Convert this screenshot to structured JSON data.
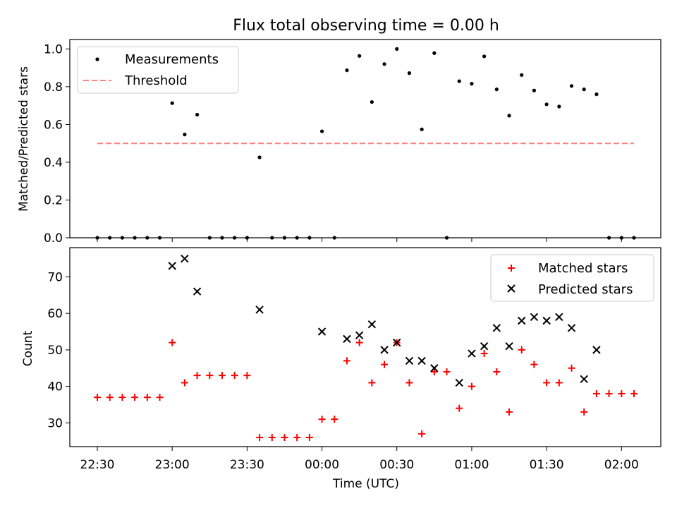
{
  "chart_data": [
    {
      "type": "scatter",
      "title": "Flux total observing time = 0.00 h",
      "xlabel": "",
      "ylabel": "Matched/Predicted stars",
      "ylim": [
        0,
        1.05
      ],
      "yticks": [
        "0.0",
        "0.2",
        "0.4",
        "0.6",
        "0.8",
        "1.0"
      ],
      "x_tick_labels_shown": false,
      "legend": "top-left",
      "series": [
        {
          "name": "Measurements",
          "marker": "dot",
          "color": "#000000",
          "points": [
            [
              "22:30",
              0.0
            ],
            [
              "22:35",
              0.0
            ],
            [
              "22:40",
              0.0
            ],
            [
              "22:45",
              0.0
            ],
            [
              "22:50",
              0.0
            ],
            [
              "22:55",
              0.0
            ],
            [
              "23:00",
              0.713
            ],
            [
              "23:05",
              0.547
            ],
            [
              "23:10",
              0.652
            ],
            [
              "23:15",
              0.0
            ],
            [
              "23:20",
              0.0
            ],
            [
              "23:25",
              0.0
            ],
            [
              "23:30",
              0.0
            ],
            [
              "23:35",
              0.426
            ],
            [
              "23:40",
              0.0
            ],
            [
              "23:45",
              0.0
            ],
            [
              "23:50",
              0.0
            ],
            [
              "23:55",
              0.0
            ],
            [
              "00:00",
              0.564
            ],
            [
              "00:05",
              0.0
            ],
            [
              "00:10",
              0.887
            ],
            [
              "00:15",
              0.963
            ],
            [
              "00:20",
              0.719
            ],
            [
              "00:25",
              0.92
            ],
            [
              "00:30",
              1.0
            ],
            [
              "00:35",
              0.872
            ],
            [
              "00:40",
              0.574
            ],
            [
              "00:45",
              0.978
            ],
            [
              "00:50",
              0.0
            ],
            [
              "00:55",
              0.829
            ],
            [
              "01:00",
              0.816
            ],
            [
              "01:05",
              0.961
            ],
            [
              "01:10",
              0.786
            ],
            [
              "01:15",
              0.647
            ],
            [
              "01:20",
              0.862
            ],
            [
              "01:25",
              0.78
            ],
            [
              "01:30",
              0.707
            ],
            [
              "01:35",
              0.695
            ],
            [
              "01:40",
              0.804
            ],
            [
              "01:45",
              0.786
            ],
            [
              "01:50",
              0.76
            ],
            [
              "01:55",
              0.0
            ],
            [
              "02:00",
              0.0
            ],
            [
              "02:05",
              0.0
            ]
          ]
        },
        {
          "name": "Threshold",
          "marker": "dashed-line",
          "color": "#ff8080",
          "points": [
            [
              "22:30",
              0.5
            ],
            [
              "02:05",
              0.5
            ]
          ]
        }
      ]
    },
    {
      "type": "scatter",
      "title": "",
      "xlabel": "Time (UTC)",
      "ylabel": "Count",
      "ylim": [
        23.5,
        78
      ],
      "yticks": [
        "30",
        "40",
        "50",
        "60",
        "70"
      ],
      "xticks": [
        "22:30",
        "23:00",
        "23:30",
        "00:00",
        "00:30",
        "01:00",
        "01:30",
        "02:00"
      ],
      "legend": "top-right",
      "series": [
        {
          "name": "Matched stars",
          "marker": "plus",
          "color": "#ff0000",
          "points": [
            [
              "22:30",
              37
            ],
            [
              "22:35",
              37
            ],
            [
              "22:40",
              37
            ],
            [
              "22:45",
              37
            ],
            [
              "22:50",
              37
            ],
            [
              "22:55",
              37
            ],
            [
              "23:00",
              52
            ],
            [
              "23:05",
              41
            ],
            [
              "23:10",
              43
            ],
            [
              "23:15",
              43
            ],
            [
              "23:20",
              43
            ],
            [
              "23:25",
              43
            ],
            [
              "23:30",
              43
            ],
            [
              "23:35",
              26
            ],
            [
              "23:40",
              26
            ],
            [
              "23:45",
              26
            ],
            [
              "23:50",
              26
            ],
            [
              "23:55",
              26
            ],
            [
              "00:00",
              31
            ],
            [
              "00:05",
              31
            ],
            [
              "00:10",
              47
            ],
            [
              "00:15",
              52
            ],
            [
              "00:20",
              41
            ],
            [
              "00:25",
              46
            ],
            [
              "00:30",
              52
            ],
            [
              "00:35",
              41
            ],
            [
              "00:40",
              27
            ],
            [
              "00:45",
              44
            ],
            [
              "00:50",
              44
            ],
            [
              "00:55",
              34
            ],
            [
              "01:00",
              40
            ],
            [
              "01:05",
              49
            ],
            [
              "01:10",
              44
            ],
            [
              "01:15",
              33
            ],
            [
              "01:20",
              50
            ],
            [
              "01:25",
              46
            ],
            [
              "01:30",
              41
            ],
            [
              "01:35",
              41
            ],
            [
              "01:40",
              45
            ],
            [
              "01:45",
              33
            ],
            [
              "01:50",
              38
            ],
            [
              "01:55",
              38
            ],
            [
              "02:00",
              38
            ],
            [
              "02:05",
              38
            ]
          ]
        },
        {
          "name": "Predicted stars",
          "marker": "x",
          "color": "#000000",
          "points": [
            [
              "23:00",
              73
            ],
            [
              "23:05",
              75
            ],
            [
              "23:10",
              66
            ],
            [
              "23:35",
              61
            ],
            [
              "00:00",
              55
            ],
            [
              "00:10",
              53
            ],
            [
              "00:15",
              54
            ],
            [
              "00:20",
              57
            ],
            [
              "00:25",
              50
            ],
            [
              "00:30",
              52
            ],
            [
              "00:35",
              47
            ],
            [
              "00:40",
              47
            ],
            [
              "00:45",
              45
            ],
            [
              "00:55",
              41
            ],
            [
              "01:00",
              49
            ],
            [
              "01:05",
              51
            ],
            [
              "01:10",
              56
            ],
            [
              "01:15",
              51
            ],
            [
              "01:20",
              58
            ],
            [
              "01:25",
              59
            ],
            [
              "01:30",
              58
            ],
            [
              "01:35",
              59
            ],
            [
              "01:40",
              56
            ],
            [
              "01:45",
              42
            ],
            [
              "01:50",
              50
            ]
          ]
        }
      ]
    }
  ]
}
